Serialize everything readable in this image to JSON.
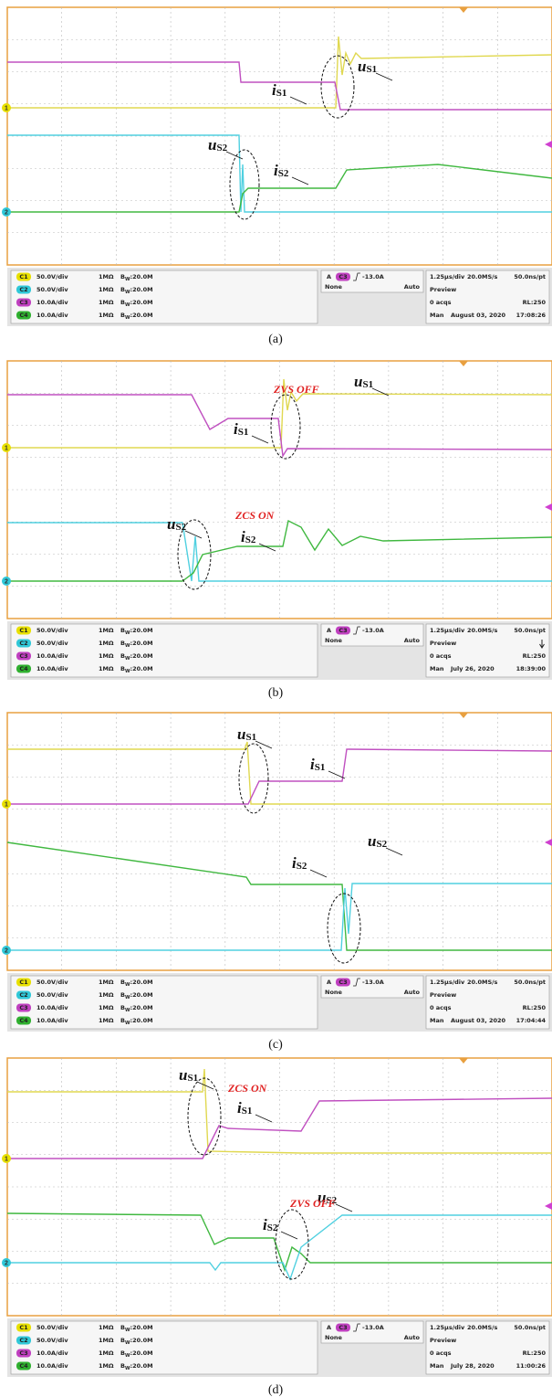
{
  "panels": [
    {
      "caption": "(a)",
      "labels": [
        {
          "main": "u",
          "sub": "S1"
        },
        {
          "main": "i",
          "sub": "S1"
        },
        {
          "main": "u",
          "sub": "S2"
        },
        {
          "main": "i",
          "sub": "S2"
        }
      ],
      "notes": [],
      "markers": [
        "1",
        "2"
      ],
      "channels": [
        {
          "badge": "C1",
          "scale": "50.0V/div",
          "impedance": "1MΩ",
          "bw": "B",
          "bw_sub": "W",
          "bw_value": ":20.0M"
        },
        {
          "badge": "C2",
          "scale": "50.0V/div",
          "impedance": "1MΩ",
          "bw": "B",
          "bw_sub": "W",
          "bw_value": ":20.0M"
        },
        {
          "badge": "C3",
          "scale": "10.0A/div",
          "impedance": "1MΩ",
          "bw": "B",
          "bw_sub": "W",
          "bw_value": ":20.0M"
        },
        {
          "badge": "C4",
          "scale": "10.0A/div",
          "impedance": "1MΩ",
          "bw": "B",
          "bw_sub": "W",
          "bw_value": ":20.0M"
        }
      ],
      "trigger": {
        "source": "A",
        "badge": "C3",
        "level": "-13.0A",
        "type": "None",
        "mode": "Auto"
      },
      "acq": {
        "timebase": "1.25µs/div",
        "rate": "20.0MS/s",
        "resolution": "50.0ns/pt",
        "status": "Preview",
        "acqs": "0 acqs",
        "record": "RL:250",
        "mode": "Man",
        "date": "August 03, 2020",
        "time": "17:08:26"
      }
    },
    {
      "caption": "(b)",
      "labels": [
        {
          "main": "u",
          "sub": "S1"
        },
        {
          "main": "i",
          "sub": "S1"
        },
        {
          "main": "u",
          "sub": "S2"
        },
        {
          "main": "i",
          "sub": "S2"
        }
      ],
      "notes": [
        "ZVS OFF",
        "ZCS ON"
      ],
      "markers": [
        "1",
        "2"
      ],
      "channels": [
        {
          "badge": "C1",
          "scale": "50.0V/div",
          "impedance": "1MΩ",
          "bw": "B",
          "bw_sub": "W",
          "bw_value": ":20.0M"
        },
        {
          "badge": "C2",
          "scale": "50.0V/div",
          "impedance": "1MΩ",
          "bw": "B",
          "bw_sub": "W",
          "bw_value": ":20.0M"
        },
        {
          "badge": "C3",
          "scale": "10.0A/div",
          "impedance": "1MΩ",
          "bw": "B",
          "bw_sub": "W",
          "bw_value": ":20.0M"
        },
        {
          "badge": "C4",
          "scale": "10.0A/div",
          "impedance": "1MΩ",
          "bw": "B",
          "bw_sub": "W",
          "bw_value": ":20.0M"
        }
      ],
      "trigger": {
        "source": "A",
        "badge": "C3",
        "level": "-13.0A",
        "type": "None",
        "mode": "Auto"
      },
      "acq": {
        "timebase": "1.25µs/div",
        "rate": "20.0MS/s",
        "resolution": "50.0ns/pt",
        "status": "Preview",
        "acqs": "0 acqs",
        "record": "RL:250",
        "mode": "Man",
        "date": "July 26, 2020",
        "time": "18:39:00"
      }
    },
    {
      "caption": "(c)",
      "labels": [
        {
          "main": "u",
          "sub": "S1"
        },
        {
          "main": "i",
          "sub": "S1"
        },
        {
          "main": "i",
          "sub": "S2"
        },
        {
          "main": "u",
          "sub": "S2"
        }
      ],
      "notes": [],
      "markers": [
        "1",
        "2"
      ],
      "channels": [
        {
          "badge": "C1",
          "scale": "50.0V/div",
          "impedance": "1MΩ",
          "bw": "B",
          "bw_sub": "W",
          "bw_value": ":20.0M"
        },
        {
          "badge": "C2",
          "scale": "50.0V/div",
          "impedance": "1MΩ",
          "bw": "B",
          "bw_sub": "W",
          "bw_value": ":20.0M"
        },
        {
          "badge": "C3",
          "scale": "10.0A/div",
          "impedance": "1MΩ",
          "bw": "B",
          "bw_sub": "W",
          "bw_value": ":20.0M"
        },
        {
          "badge": "C4",
          "scale": "10.0A/div",
          "impedance": "1MΩ",
          "bw": "B",
          "bw_sub": "W",
          "bw_value": ":20.0M"
        }
      ],
      "trigger": {
        "source": "A",
        "badge": "C3",
        "level": "-13.0A",
        "type": "None",
        "mode": "Auto"
      },
      "acq": {
        "timebase": "1.25µs/div",
        "rate": "20.0MS/s",
        "resolution": "50.0ns/pt",
        "status": "Preview",
        "acqs": "0 acqs",
        "record": "RL:250",
        "mode": "Man",
        "date": "August 03, 2020",
        "time": "17:04:44"
      }
    },
    {
      "caption": "(d)",
      "labels": [
        {
          "main": "u",
          "sub": "S1"
        },
        {
          "main": "i",
          "sub": "S1"
        },
        {
          "main": "u",
          "sub": "S2"
        },
        {
          "main": "i",
          "sub": "S2"
        }
      ],
      "notes": [
        "ZCS ON",
        "ZVS OFF"
      ],
      "markers": [
        "1",
        "2"
      ],
      "channels": [
        {
          "badge": "C1",
          "scale": "50.0V/div",
          "impedance": "1MΩ",
          "bw": "B",
          "bw_sub": "W",
          "bw_value": ":20.0M"
        },
        {
          "badge": "C2",
          "scale": "50.0V/div",
          "impedance": "1MΩ",
          "bw": "B",
          "bw_sub": "W",
          "bw_value": ":20.0M"
        },
        {
          "badge": "C3",
          "scale": "10.0A/div",
          "impedance": "1MΩ",
          "bw": "B",
          "bw_sub": "W",
          "bw_value": ":20.0M"
        },
        {
          "badge": "C4",
          "scale": "10.0A/div",
          "impedance": "1MΩ",
          "bw": "B",
          "bw_sub": "W",
          "bw_value": ":20.0M"
        }
      ],
      "trigger": {
        "source": "A",
        "badge": "C3",
        "level": "-13.0A",
        "type": "None",
        "mode": "Auto"
      },
      "acq": {
        "timebase": "1.25µs/div",
        "rate": "20.0MS/s",
        "resolution": "50.0ns/pt",
        "status": "Preview",
        "acqs": "0 acqs",
        "record": "RL:250",
        "mode": "Man",
        "date": "July 28, 2020",
        "time": "11:00:26"
      }
    }
  ]
}
